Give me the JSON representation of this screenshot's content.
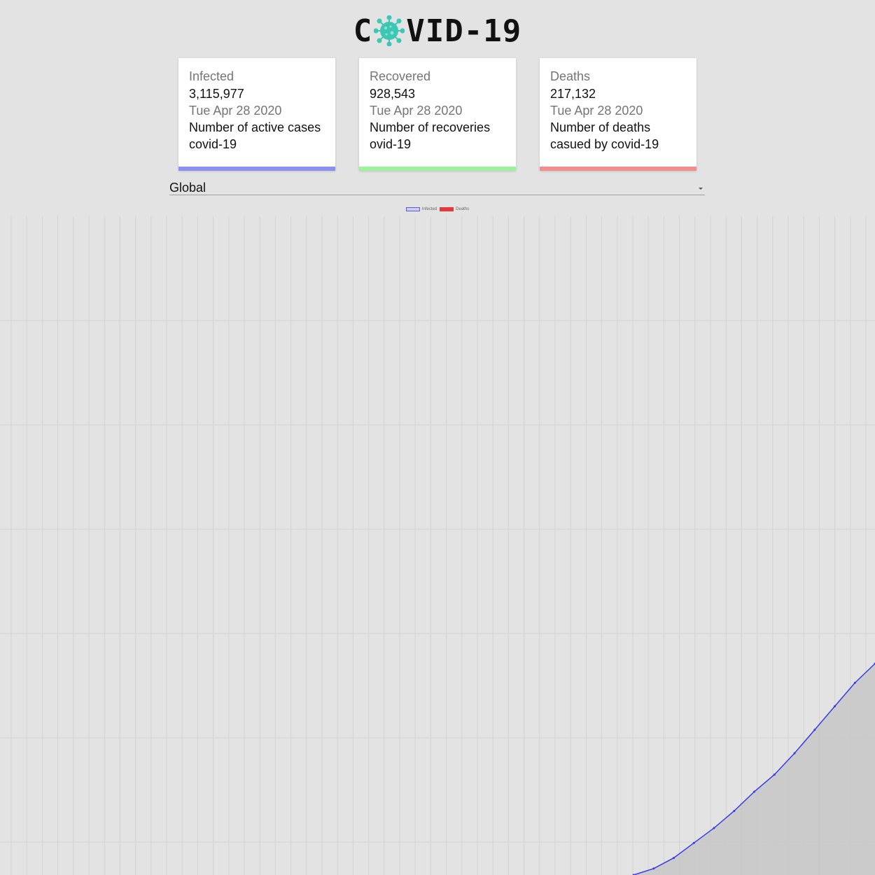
{
  "header": {
    "logo_prefix": "C",
    "logo_suffix": "VID-19",
    "logo_icon": "virus-icon"
  },
  "cards": [
    {
      "title": "Infected",
      "count": "3,115,977",
      "date": "Tue Apr 28 2020",
      "description": "Number of active cases covid-19",
      "color": "#8b8ff0"
    },
    {
      "title": "Recovered",
      "count": "928,543",
      "date": "Tue Apr 28 2020",
      "description": "Number of recoveries ovid-19",
      "color": "#9cf29c"
    },
    {
      "title": "Deaths",
      "count": "217,132",
      "date": "Tue Apr 28 2020",
      "description": "Number of deaths casued by covid-19",
      "color": "#f58a8f"
    }
  ],
  "region_select": {
    "selected": "Global"
  },
  "chart_data": {
    "type": "area",
    "legend": [
      {
        "name": "Infected",
        "color": "#5a5af0"
      },
      {
        "name": "Deaths",
        "color": "#e03a3a"
      }
    ],
    "legend_position": "top-center",
    "grid": true,
    "series": [
      {
        "name": "Infected",
        "color": "#3a3ae8",
        "fill": "#c8c8c8",
        "values": [
          0,
          0.015,
          0.04,
          0.075,
          0.11,
          0.15,
          0.195,
          0.235,
          0.285,
          0.34,
          0.395,
          0.45,
          0.495
        ]
      }
    ]
  }
}
